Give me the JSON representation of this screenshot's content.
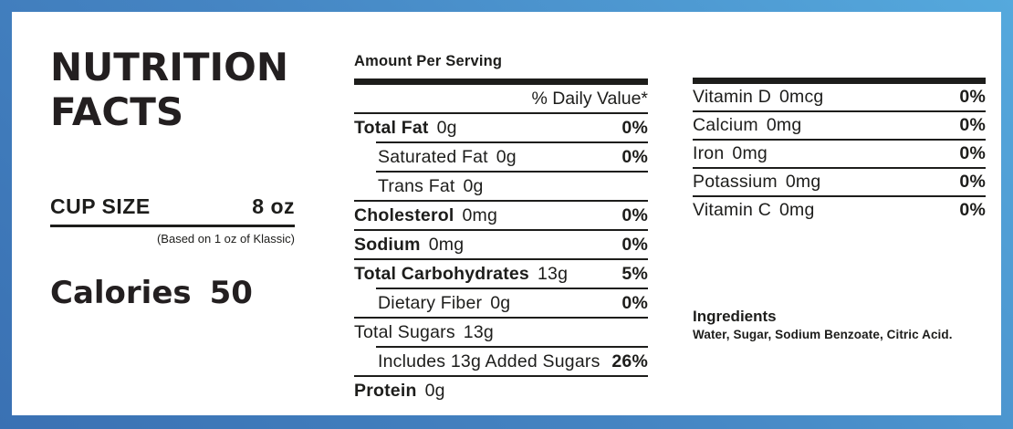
{
  "colors": {
    "frame_gradient_from": "#3a71b3",
    "frame_gradient_to": "#55a9dd",
    "ink": "#1d1d1b"
  },
  "left_panel": {
    "title_line1": "NUTRITION",
    "title_line2": "FACTS",
    "cup_size_label": "CUP SIZE",
    "cup_size_value": "8 oz",
    "cup_size_note": "(Based on 1 oz of Klassic)",
    "calories_label": "Calories",
    "calories_value": "50"
  },
  "main_panel": {
    "header": "Amount Per Serving",
    "daily_value_header": "% Daily Value*",
    "rows": [
      {
        "label": "Total Fat",
        "amount": "0g",
        "value": "0%"
      },
      {
        "label": "Saturated Fat",
        "amount": "0g",
        "value": "0%"
      },
      {
        "label": "Trans Fat",
        "amount": "0g",
        "value": ""
      },
      {
        "label": "Cholesterol",
        "amount": "0mg",
        "value": "0%"
      },
      {
        "label": "Sodium",
        "amount": "0mg",
        "value": "0%"
      },
      {
        "label": "Total Carbohydrates",
        "amount": "13g",
        "value": "5%"
      },
      {
        "label": "Dietary Fiber",
        "amount": "0g",
        "value": "0%"
      },
      {
        "label": "Total Sugars",
        "amount": "13g",
        "value": ""
      },
      {
        "label": "Includes 13g Added Sugars",
        "amount": "",
        "value": "26%"
      },
      {
        "label": "Protein",
        "amount": "0g",
        "value": ""
      }
    ]
  },
  "vitamins_panel": {
    "rows": [
      {
        "label": "Vitamin D",
        "amount": "0mcg",
        "value": "0%"
      },
      {
        "label": "Calcium",
        "amount": "0mg",
        "value": "0%"
      },
      {
        "label": "Iron",
        "amount": "0mg",
        "value": "0%"
      },
      {
        "label": "Potassium",
        "amount": "0mg",
        "value": "0%"
      },
      {
        "label": "Vitamin C",
        "amount": "0mg",
        "value": "0%"
      }
    ],
    "ingredients_title": "Ingredients",
    "ingredients_text": "Water, Sugar, Sodium Benzoate, Citric Acid."
  }
}
